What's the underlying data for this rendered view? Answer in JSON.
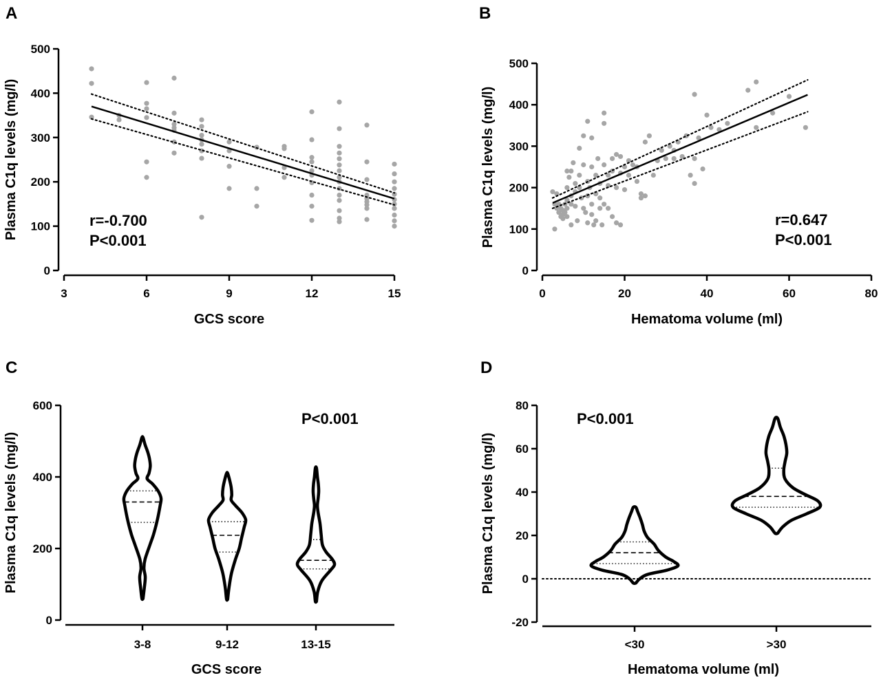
{
  "chart_data": [
    {
      "panel": "A",
      "type": "scatter",
      "xlabel": "GCS score",
      "ylabel": "Plasma C1q levels (mg/l)",
      "xlim": [
        3,
        15
      ],
      "ylim": [
        0,
        500
      ],
      "xticks": [
        3,
        6,
        9,
        12,
        15
      ],
      "yticks": [
        0,
        100,
        200,
        300,
        400,
        500
      ],
      "point_color": "#a6a6a6",
      "fit": {
        "x": [
          4,
          15
        ],
        "y": [
          370,
          162
        ]
      },
      "ci_upper": {
        "x": [
          4,
          15
        ],
        "y": [
          398,
          175
        ]
      },
      "ci_lower": {
        "x": [
          4,
          15
        ],
        "y": [
          342,
          148
        ]
      },
      "annotations": [
        "r=-0.700",
        "P<0.001"
      ],
      "points": [
        [
          4,
          455
        ],
        [
          4,
          422
        ],
        [
          4,
          346
        ],
        [
          5,
          350
        ],
        [
          5,
          340
        ],
        [
          6,
          424
        ],
        [
          6,
          377
        ],
        [
          6,
          365
        ],
        [
          6,
          345
        ],
        [
          6,
          245
        ],
        [
          6,
          210
        ],
        [
          7,
          434
        ],
        [
          7,
          355
        ],
        [
          7,
          330
        ],
        [
          7,
          322
        ],
        [
          7,
          316
        ],
        [
          7,
          290
        ],
        [
          7,
          265
        ],
        [
          8,
          340
        ],
        [
          8,
          325
        ],
        [
          8,
          305
        ],
        [
          8,
          295
        ],
        [
          8,
          285
        ],
        [
          8,
          270
        ],
        [
          8,
          253
        ],
        [
          8,
          120
        ],
        [
          9,
          290
        ],
        [
          9,
          270
        ],
        [
          9,
          235
        ],
        [
          9,
          185
        ],
        [
          10,
          278
        ],
        [
          10,
          185
        ],
        [
          10,
          145
        ],
        [
          11,
          280
        ],
        [
          11,
          275
        ],
        [
          11,
          232
        ],
        [
          11,
          210
        ],
        [
          12,
          358
        ],
        [
          12,
          295
        ],
        [
          12,
          255
        ],
        [
          12,
          245
        ],
        [
          12,
          225
        ],
        [
          12,
          215
        ],
        [
          12,
          198
        ],
        [
          12,
          170
        ],
        [
          12,
          145
        ],
        [
          12,
          113
        ],
        [
          13,
          380
        ],
        [
          13,
          320
        ],
        [
          13,
          280
        ],
        [
          13,
          265
        ],
        [
          13,
          252
        ],
        [
          13,
          238
        ],
        [
          13,
          225
        ],
        [
          13,
          210
        ],
        [
          13,
          200
        ],
        [
          13,
          185
        ],
        [
          13,
          170
        ],
        [
          13,
          158
        ],
        [
          13,
          135
        ],
        [
          13,
          118
        ],
        [
          13,
          110
        ],
        [
          14,
          328
        ],
        [
          14,
          245
        ],
        [
          14,
          205
        ],
        [
          14,
          170
        ],
        [
          14,
          162
        ],
        [
          14,
          155
        ],
        [
          14,
          148
        ],
        [
          14,
          140
        ],
        [
          14,
          115
        ],
        [
          15,
          240
        ],
        [
          15,
          218
        ],
        [
          15,
          200
        ],
        [
          15,
          185
        ],
        [
          15,
          172
        ],
        [
          15,
          160
        ],
        [
          15,
          150
        ],
        [
          15,
          140
        ],
        [
          15,
          125
        ],
        [
          15,
          112
        ],
        [
          15,
          100
        ]
      ]
    },
    {
      "panel": "B",
      "type": "scatter",
      "xlabel": "Hematoma volume (ml)",
      "ylabel": "Plasma C1q levels (mg/l)",
      "xlim": [
        0,
        80
      ],
      "ylim": [
        0,
        500
      ],
      "xticks": [
        0,
        20,
        40,
        60,
        80
      ],
      "yticks": [
        0,
        100,
        200,
        300,
        400,
        500
      ],
      "point_color": "#a6a6a6",
      "fit": {
        "x": [
          2.5,
          64.5
        ],
        "y": [
          163,
          424
        ]
      },
      "ci_upper": {
        "x": [
          2.5,
          64.5
        ],
        "y": [
          175,
          460
        ]
      },
      "ci_lower": {
        "x": [
          2.5,
          64.5
        ],
        "y": [
          150,
          383
        ]
      },
      "annotations": [
        "r=0.647",
        "P<0.001"
      ],
      "points": [
        [
          2.5,
          190
        ],
        [
          3,
          100
        ],
        [
          3,
          160
        ],
        [
          3.5,
          185
        ],
        [
          3.5,
          150
        ],
        [
          4,
          140
        ],
        [
          4,
          160
        ],
        [
          4.5,
          150
        ],
        [
          4.5,
          130
        ],
        [
          5,
          145
        ],
        [
          5,
          125
        ],
        [
          5,
          135
        ],
        [
          5.5,
          160
        ],
        [
          5.5,
          140
        ],
        [
          6,
          240
        ],
        [
          6,
          200
        ],
        [
          6,
          170
        ],
        [
          6,
          150
        ],
        [
          6,
          130
        ],
        [
          6.5,
          225
        ],
        [
          7,
          240
        ],
        [
          7,
          180
        ],
        [
          7,
          160
        ],
        [
          7,
          110
        ],
        [
          7.5,
          260
        ],
        [
          8,
          210
        ],
        [
          8,
          190
        ],
        [
          8,
          155
        ],
        [
          8.5,
          120
        ],
        [
          9,
          295
        ],
        [
          9,
          230
        ],
        [
          9,
          200
        ],
        [
          9.5,
          175
        ],
        [
          10,
          325
        ],
        [
          10,
          255
        ],
        [
          10,
          150
        ],
        [
          10.5,
          140
        ],
        [
          11,
          360
        ],
        [
          11,
          215
        ],
        [
          11,
          180
        ],
        [
          11,
          115
        ],
        [
          11.5,
          200
        ],
        [
          12,
          320
        ],
        [
          12,
          250
        ],
        [
          12,
          160
        ],
        [
          12,
          135
        ],
        [
          12.5,
          110
        ],
        [
          13,
          230
        ],
        [
          13,
          185
        ],
        [
          13,
          120
        ],
        [
          13.5,
          270
        ],
        [
          14,
          210
        ],
        [
          14,
          175
        ],
        [
          14,
          150
        ],
        [
          14.5,
          110
        ],
        [
          15,
          380
        ],
        [
          15,
          355
        ],
        [
          15,
          255
        ],
        [
          15,
          160
        ],
        [
          16,
          230
        ],
        [
          16,
          205
        ],
        [
          16,
          150
        ],
        [
          17,
          270
        ],
        [
          17,
          240
        ],
        [
          17,
          130
        ],
        [
          18,
          280
        ],
        [
          18,
          200
        ],
        [
          18,
          115
        ],
        [
          19,
          275
        ],
        [
          19,
          235
        ],
        [
          19,
          110
        ],
        [
          20,
          250
        ],
        [
          20,
          195
        ],
        [
          21,
          265
        ],
        [
          21,
          230
        ],
        [
          22,
          255
        ],
        [
          23,
          250
        ],
        [
          23,
          215
        ],
        [
          24,
          185
        ],
        [
          24,
          175
        ],
        [
          25,
          310
        ],
        [
          25,
          180
        ],
        [
          26,
          325
        ],
        [
          27,
          230
        ],
        [
          28,
          265
        ],
        [
          29,
          290
        ],
        [
          30,
          270
        ],
        [
          31,
          300
        ],
        [
          32,
          290
        ],
        [
          32,
          270
        ],
        [
          33,
          310
        ],
        [
          34,
          275
        ],
        [
          35,
          325
        ],
        [
          36,
          230
        ],
        [
          37,
          425
        ],
        [
          37,
          270
        ],
        [
          37,
          210
        ],
        [
          38,
          320
        ],
        [
          39,
          245
        ],
        [
          40,
          375
        ],
        [
          41,
          345
        ],
        [
          43,
          340
        ],
        [
          45,
          355
        ],
        [
          50,
          435
        ],
        [
          52,
          455
        ],
        [
          52,
          345
        ],
        [
          56,
          380
        ],
        [
          60,
          420
        ],
        [
          64,
          345
        ]
      ]
    },
    {
      "panel": "C",
      "type": "violin",
      "xlabel": "GCS score",
      "ylabel": "Plasma C1q levels (mg/l)",
      "ylim": [
        0,
        600
      ],
      "yticks": [
        0,
        200,
        400,
        600
      ],
      "categories": [
        "3-8",
        "9-12",
        "13-15"
      ],
      "annotations": [
        "P<0.001"
      ],
      "series": [
        {
          "name": "3-8",
          "median": 330,
          "q1": 273,
          "q3": 361,
          "shape": [
            [
              60,
              0.03
            ],
            [
              90,
              0.1
            ],
            [
              120,
              0.15
            ],
            [
              145,
              0.08
            ],
            [
              170,
              0.14
            ],
            [
              210,
              0.4
            ],
            [
              240,
              0.6
            ],
            [
              280,
              0.8
            ],
            [
              320,
              0.95
            ],
            [
              340,
              1
            ],
            [
              360,
              0.85
            ],
            [
              380,
              0.55
            ],
            [
              395,
              0.25
            ],
            [
              410,
              0.35
            ],
            [
              430,
              0.42
            ],
            [
              450,
              0.38
            ],
            [
              470,
              0.28
            ],
            [
              490,
              0.14
            ],
            [
              510,
              0.03
            ]
          ]
        },
        {
          "name": "9-12",
          "median": 237,
          "q1": 190,
          "q3": 275,
          "shape": [
            [
              58,
              0.03
            ],
            [
              90,
              0.1
            ],
            [
              130,
              0.23
            ],
            [
              170,
              0.45
            ],
            [
              200,
              0.65
            ],
            [
              230,
              0.78
            ],
            [
              260,
              0.92
            ],
            [
              280,
              1
            ],
            [
              300,
              0.8
            ],
            [
              320,
              0.45
            ],
            [
              335,
              0.22
            ],
            [
              350,
              0.25
            ],
            [
              370,
              0.22
            ],
            [
              390,
              0.14
            ],
            [
              410,
              0.03
            ]
          ]
        },
        {
          "name": "13-15",
          "median": 167,
          "q1": 143,
          "q3": 225,
          "shape": [
            [
              52,
              0.03
            ],
            [
              80,
              0.1
            ],
            [
              110,
              0.32
            ],
            [
              140,
              0.8
            ],
            [
              155,
              1
            ],
            [
              170,
              0.88
            ],
            [
              190,
              0.55
            ],
            [
              210,
              0.35
            ],
            [
              240,
              0.28
            ],
            [
              270,
              0.22
            ],
            [
              300,
              0.12
            ],
            [
              320,
              0.08
            ],
            [
              340,
              0.12
            ],
            [
              360,
              0.15
            ],
            [
              380,
              0.13
            ],
            [
              400,
              0.08
            ],
            [
              425,
              0.03
            ]
          ]
        }
      ]
    },
    {
      "panel": "D",
      "type": "violin",
      "xlabel": "Hematoma volume (ml)",
      "ylabel": "Plasma C1q levels (mg/l)",
      "ylim": [
        -20,
        80
      ],
      "yticks": [
        -20,
        0,
        20,
        40,
        60,
        80
      ],
      "categories": [
        "<30",
        ">30"
      ],
      "reference_line": 0,
      "annotations": [
        "P<0.001"
      ],
      "series": [
        {
          "name": "<30",
          "median": 12,
          "q1": 7,
          "q3": 17,
          "shape": [
            [
              -2,
              0.03
            ],
            [
              0,
              0.12
            ],
            [
              2,
              0.3
            ],
            [
              4,
              0.75
            ],
            [
              6,
              1
            ],
            [
              8,
              0.9
            ],
            [
              10,
              0.72
            ],
            [
              13,
              0.55
            ],
            [
              16,
              0.45
            ],
            [
              19,
              0.3
            ],
            [
              22,
              0.22
            ],
            [
              25,
              0.18
            ],
            [
              28,
              0.13
            ],
            [
              31,
              0.07
            ],
            [
              33,
              0.03
            ]
          ]
        },
        {
          "name": ">30",
          "median": 38,
          "q1": 33,
          "q3": 51,
          "shape": [
            [
              21,
              0.03
            ],
            [
              24,
              0.15
            ],
            [
              27,
              0.35
            ],
            [
              30,
              0.7
            ],
            [
              33,
              1
            ],
            [
              36,
              0.95
            ],
            [
              39,
              0.65
            ],
            [
              42,
              0.38
            ],
            [
              46,
              0.2
            ],
            [
              50,
              0.17
            ],
            [
              54,
              0.2
            ],
            [
              58,
              0.24
            ],
            [
              62,
              0.22
            ],
            [
              66,
              0.17
            ],
            [
              70,
              0.09
            ],
            [
              74,
              0.03
            ]
          ]
        }
      ]
    }
  ]
}
